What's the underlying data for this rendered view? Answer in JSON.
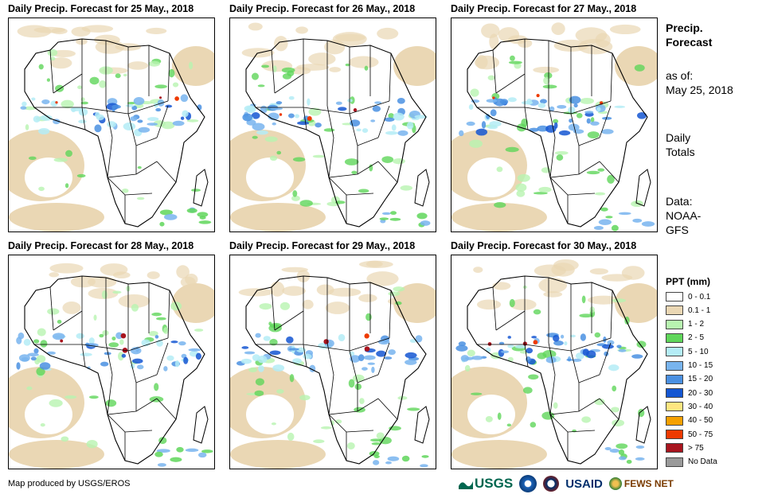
{
  "panels": [
    {
      "title": "Daily Precip. Forecast for 25 May., 2018"
    },
    {
      "title": "Daily Precip. Forecast for 26 May., 2018"
    },
    {
      "title": "Daily Precip. Forecast for 27 May., 2018"
    },
    {
      "title": "Daily Precip. Forecast for 28 May., 2018"
    },
    {
      "title": "Daily Precip. Forecast for 29 May., 2018"
    },
    {
      "title": "Daily Precip. Forecast for 30 May., 2018"
    }
  ],
  "side": {
    "title_line1": "Precip.",
    "title_line2": "Forecast",
    "asof_line1": "as of:",
    "asof_line2": "May 25, 2018",
    "totals_line1": "Daily",
    "totals_line2": "Totals",
    "data_line1": "Data:",
    "data_line2": "NOAA-",
    "data_line3": "GFS"
  },
  "legend": {
    "title": "PPT (mm)",
    "items": [
      {
        "label": "0 - 0.1",
        "color": "#ffffff"
      },
      {
        "label": "0.1 - 1",
        "color": "#ead7b4"
      },
      {
        "label": "1 - 2",
        "color": "#b8f4b0"
      },
      {
        "label": "2 - 5",
        "color": "#5fd65a"
      },
      {
        "label": "5 - 10",
        "color": "#b4ecf6"
      },
      {
        "label": "10 - 15",
        "color": "#78b4ee"
      },
      {
        "label": "15 - 20",
        "color": "#4a90e2"
      },
      {
        "label": "20 - 30",
        "color": "#1456d2"
      },
      {
        "label": "30 - 40",
        "color": "#ffe680"
      },
      {
        "label": "40 - 50",
        "color": "#f5a000"
      },
      {
        "label": "50 - 75",
        "color": "#ee3a00"
      },
      {
        "label": "> 75",
        "color": "#a8141e"
      },
      {
        "label": "No Data",
        "color": "#9a9a9a"
      }
    ]
  },
  "footer": {
    "credit": "Map produced by USGS/EROS",
    "logos": {
      "usgs": "USGS",
      "usaid": "USAID",
      "fews": "FEWS NET"
    }
  }
}
